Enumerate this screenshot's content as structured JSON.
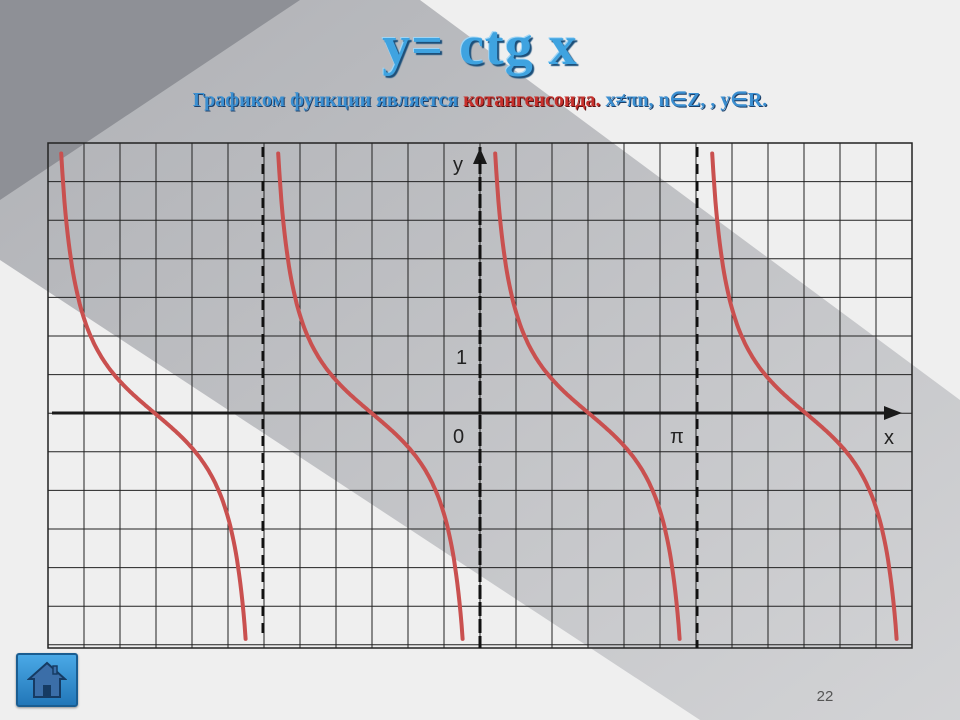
{
  "slide": {
    "title": "y= ctg x",
    "subtitle_part1": "Графиком функции является ",
    "subtitle_red": "котангенсоида.",
    "subtitle_part2": " x≠πn, n∈Z, , y∈R.",
    "page_number": "22"
  },
  "graph": {
    "y_axis_label": "y",
    "x_axis_label": "x",
    "origin_label": "0",
    "one_label": "1",
    "pi_label": "π"
  },
  "nav": {
    "home_icon": "home-icon"
  },
  "colors": {
    "curve": "#c9504f",
    "title": "#3fa3e0",
    "red_text": "#c7302c",
    "grid": "#333333"
  }
}
